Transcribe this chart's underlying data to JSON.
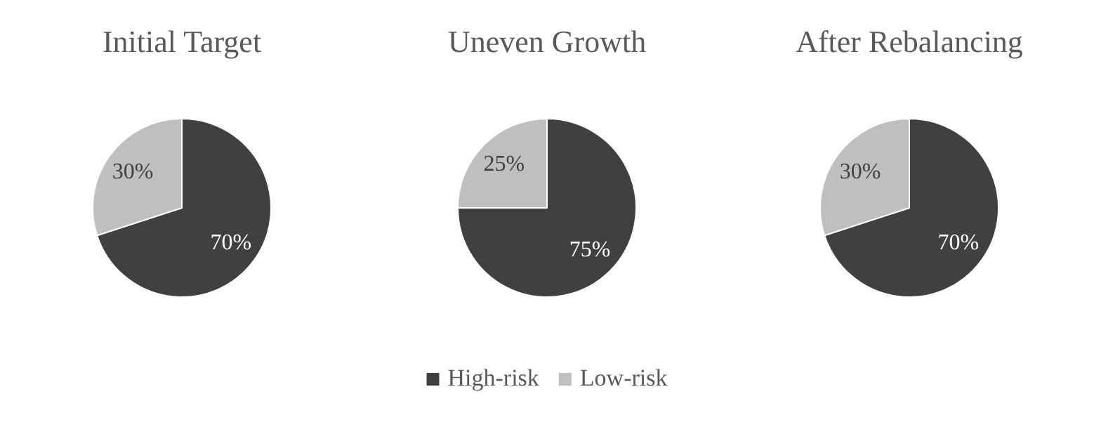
{
  "chart_data": [
    {
      "type": "pie",
      "title": "Initial Target",
      "categories": [
        null,
        null
      ],
      "values": [
        70,
        30
      ],
      "colors": [
        "#404040",
        "#bfbfbf"
      ],
      "value_labels": [
        "70%",
        "30%"
      ],
      "legend": false
    },
    {
      "type": "pie",
      "title": "Uneven Growth",
      "categories": [
        "High-risk",
        "Low-risk"
      ],
      "values": [
        75,
        25
      ],
      "colors": [
        "#404040",
        "#bfbfbf"
      ],
      "value_labels": [
        "75%",
        "25%"
      ],
      "legend": "bottom"
    },
    {
      "type": "pie",
      "title": "After Rebalancing",
      "categories": [
        null,
        null
      ],
      "values": [
        70,
        30
      ],
      "colors": [
        "#404040",
        "#bfbfbf"
      ],
      "value_labels": [
        "70%",
        "30%"
      ],
      "legend": false
    }
  ]
}
